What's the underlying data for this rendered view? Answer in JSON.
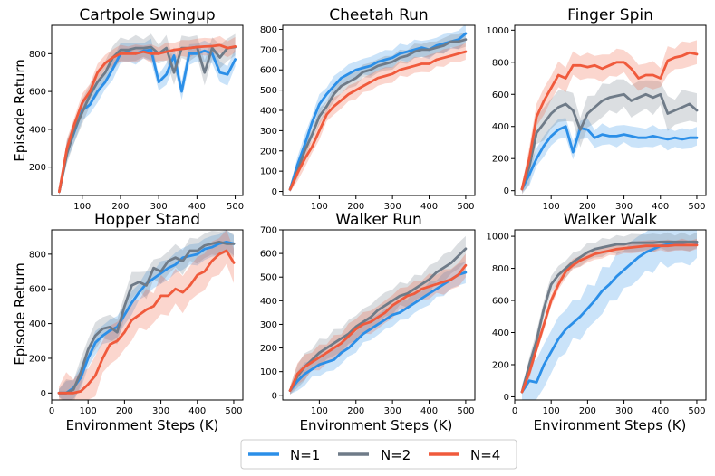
{
  "figure": {
    "ylabel": "Episode Return",
    "xlabel": "Environment Steps (K)",
    "legend": {
      "entries": [
        {
          "label": "N=1",
          "color": "#2b8fe8"
        },
        {
          "label": "N=2",
          "color": "#6f7b88"
        },
        {
          "label": "N=4",
          "color": "#f05a3c"
        }
      ]
    }
  },
  "chart_data": [
    {
      "type": "line",
      "title": "Cartpole Swingup",
      "xlim": [
        20,
        520
      ],
      "ylim": [
        50,
        950
      ],
      "xticks": [
        100,
        200,
        300,
        400,
        500
      ],
      "yticks": [
        200,
        400,
        600,
        800
      ],
      "x": [
        40,
        60,
        80,
        100,
        120,
        140,
        160,
        180,
        200,
        220,
        240,
        260,
        280,
        300,
        320,
        340,
        360,
        380,
        400,
        420,
        440,
        460,
        480,
        500
      ],
      "series": [
        {
          "name": "N=1",
          "values": [
            70,
            280,
            390,
            500,
            530,
            600,
            650,
            720,
            800,
            810,
            800,
            815,
            820,
            650,
            690,
            790,
            600,
            800,
            800,
            815,
            800,
            700,
            690,
            770
          ],
          "band": 60
        },
        {
          "name": "N=2",
          "values": [
            70,
            270,
            400,
            490,
            580,
            650,
            700,
            780,
            820,
            820,
            830,
            830,
            835,
            800,
            830,
            700,
            830,
            830,
            835,
            700,
            830,
            780,
            830,
            835
          ],
          "band": 70
        },
        {
          "name": "N=4",
          "values": [
            70,
            300,
            430,
            540,
            600,
            700,
            750,
            780,
            800,
            800,
            800,
            810,
            800,
            800,
            810,
            820,
            825,
            830,
            835,
            838,
            840,
            845,
            830,
            838
          ],
          "band": 50
        }
      ]
    },
    {
      "type": "line",
      "title": "Cheetah Run",
      "xlim": [
        0,
        525
      ],
      "ylim": [
        -20,
        820
      ],
      "xticks": [
        100,
        200,
        300,
        400,
        500
      ],
      "yticks": [
        0,
        100,
        200,
        300,
        400,
        500,
        600,
        700,
        800
      ],
      "x": [
        20,
        40,
        60,
        80,
        100,
        120,
        140,
        160,
        180,
        200,
        220,
        240,
        260,
        280,
        300,
        320,
        340,
        360,
        380,
        400,
        420,
        440,
        460,
        480,
        500
      ],
      "series": [
        {
          "name": "N=1",
          "values": [
            10,
            130,
            230,
            340,
            430,
            480,
            520,
            560,
            580,
            600,
            610,
            620,
            640,
            650,
            660,
            680,
            690,
            700,
            710,
            700,
            720,
            730,
            740,
            750,
            780
          ],
          "band": 50
        },
        {
          "name": "N=2",
          "values": [
            10,
            100,
            200,
            280,
            370,
            420,
            480,
            520,
            540,
            560,
            590,
            600,
            620,
            630,
            640,
            660,
            670,
            690,
            700,
            700,
            710,
            720,
            740,
            740,
            750
          ],
          "band": 40
        },
        {
          "name": "N=4",
          "values": [
            10,
            90,
            160,
            220,
            300,
            380,
            420,
            450,
            480,
            500,
            520,
            540,
            560,
            570,
            580,
            600,
            610,
            620,
            630,
            630,
            650,
            660,
            670,
            680,
            690
          ],
          "band": 45
        }
      ]
    },
    {
      "type": "line",
      "title": "Finger Spin",
      "xlim": [
        0,
        525
      ],
      "ylim": [
        -30,
        1030
      ],
      "xticks": [
        100,
        200,
        300,
        400,
        500
      ],
      "yticks": [
        0,
        200,
        400,
        600,
        800,
        1000
      ],
      "x": [
        20,
        40,
        60,
        80,
        100,
        120,
        140,
        160,
        180,
        200,
        220,
        240,
        260,
        280,
        300,
        320,
        340,
        360,
        380,
        400,
        420,
        440,
        460,
        480,
        500
      ],
      "series": [
        {
          "name": "N=1",
          "values": [
            10,
            100,
            200,
            280,
            340,
            380,
            400,
            240,
            390,
            380,
            330,
            350,
            340,
            340,
            350,
            340,
            330,
            330,
            340,
            330,
            320,
            330,
            320,
            330,
            330
          ],
          "band": 70
        },
        {
          "name": "N=2",
          "values": [
            10,
            150,
            360,
            420,
            480,
            520,
            540,
            500,
            380,
            480,
            520,
            560,
            580,
            590,
            600,
            560,
            580,
            600,
            580,
            600,
            480,
            500,
            520,
            540,
            500
          ],
          "band": 110
        },
        {
          "name": "N=4",
          "values": [
            10,
            200,
            460,
            560,
            640,
            720,
            700,
            780,
            780,
            770,
            780,
            760,
            780,
            800,
            800,
            760,
            700,
            720,
            720,
            700,
            810,
            830,
            840,
            860,
            850
          ],
          "band": 90
        }
      ]
    },
    {
      "type": "line",
      "title": "Hopper Stand",
      "xlim": [
        0,
        525
      ],
      "ylim": [
        -40,
        940
      ],
      "xticks": [
        0,
        100,
        200,
        300,
        400,
        500
      ],
      "yticks": [
        0,
        200,
        400,
        600,
        800
      ],
      "x": [
        20,
        40,
        60,
        80,
        100,
        120,
        140,
        160,
        180,
        200,
        220,
        240,
        260,
        280,
        300,
        320,
        340,
        360,
        380,
        400,
        420,
        440,
        460,
        480,
        500
      ],
      "series": [
        {
          "name": "N=1",
          "values": [
            0,
            0,
            30,
            90,
            200,
            290,
            330,
            360,
            380,
            450,
            520,
            580,
            630,
            660,
            690,
            720,
            740,
            780,
            790,
            800,
            830,
            840,
            860,
            870,
            860
          ],
          "band": 70
        },
        {
          "name": "N=2",
          "values": [
            0,
            0,
            20,
            120,
            250,
            330,
            370,
            380,
            350,
            500,
            620,
            640,
            620,
            720,
            700,
            760,
            780,
            760,
            820,
            820,
            850,
            860,
            870,
            860,
            860
          ],
          "band": 80
        },
        {
          "name": "N=4",
          "values": [
            0,
            0,
            0,
            10,
            50,
            100,
            200,
            280,
            300,
            350,
            420,
            450,
            480,
            500,
            560,
            560,
            600,
            580,
            620,
            680,
            700,
            760,
            800,
            820,
            750
          ],
          "band": 120
        }
      ]
    },
    {
      "type": "line",
      "title": "Walker Run",
      "xlim": [
        0,
        525
      ],
      "ylim": [
        -20,
        700
      ],
      "xticks": [
        100,
        200,
        300,
        400,
        500
      ],
      "yticks": [
        0,
        100,
        200,
        300,
        400,
        500,
        600,
        700
      ],
      "x": [
        20,
        40,
        60,
        80,
        100,
        120,
        140,
        160,
        180,
        200,
        220,
        240,
        260,
        280,
        300,
        320,
        340,
        360,
        380,
        400,
        420,
        440,
        460,
        480,
        500
      ],
      "series": [
        {
          "name": "N=1",
          "values": [
            20,
            60,
            90,
            110,
            130,
            140,
            150,
            180,
            200,
            230,
            260,
            280,
            300,
            320,
            340,
            350,
            370,
            390,
            410,
            430,
            450,
            470,
            490,
            510,
            520
          ],
          "band": 50
        },
        {
          "name": "N=2",
          "values": [
            20,
            80,
            120,
            150,
            180,
            200,
            220,
            240,
            260,
            290,
            310,
            330,
            360,
            380,
            400,
            420,
            430,
            450,
            470,
            490,
            520,
            540,
            560,
            590,
            620
          ],
          "band": 60
        },
        {
          "name": "N=4",
          "values": [
            20,
            90,
            120,
            140,
            160,
            180,
            200,
            220,
            250,
            280,
            300,
            310,
            330,
            350,
            380,
            400,
            420,
            430,
            450,
            460,
            470,
            480,
            490,
            510,
            550
          ],
          "band": 55
        }
      ]
    },
    {
      "type": "line",
      "title": "Walker Walk",
      "xlim": [
        0,
        525
      ],
      "ylim": [
        -20,
        1040
      ],
      "xticks": [
        0,
        100,
        200,
        300,
        400,
        500
      ],
      "yticks": [
        0,
        200,
        400,
        600,
        800,
        1000
      ],
      "x": [
        20,
        40,
        60,
        80,
        100,
        120,
        140,
        160,
        180,
        200,
        220,
        240,
        260,
        280,
        300,
        320,
        340,
        360,
        380,
        400,
        420,
        440,
        460,
        480,
        500
      ],
      "series": [
        {
          "name": "N=1",
          "values": [
            30,
            100,
            90,
            200,
            280,
            360,
            420,
            460,
            500,
            550,
            600,
            660,
            700,
            750,
            790,
            830,
            870,
            900,
            920,
            940,
            950,
            960,
            960,
            965,
            960
          ],
          "band": 150
        },
        {
          "name": "N=2",
          "values": [
            30,
            200,
            350,
            550,
            700,
            760,
            800,
            840,
            870,
            900,
            920,
            930,
            940,
            950,
            950,
            960,
            960,
            960,
            960,
            965,
            965,
            965,
            965,
            965,
            965
          ],
          "band": 60
        },
        {
          "name": "N=4",
          "values": [
            30,
            150,
            300,
            450,
            600,
            700,
            780,
            820,
            850,
            870,
            890,
            900,
            910,
            920,
            925,
            930,
            935,
            940,
            940,
            940,
            940,
            945,
            945,
            945,
            945
          ],
          "band": 40
        }
      ]
    }
  ]
}
